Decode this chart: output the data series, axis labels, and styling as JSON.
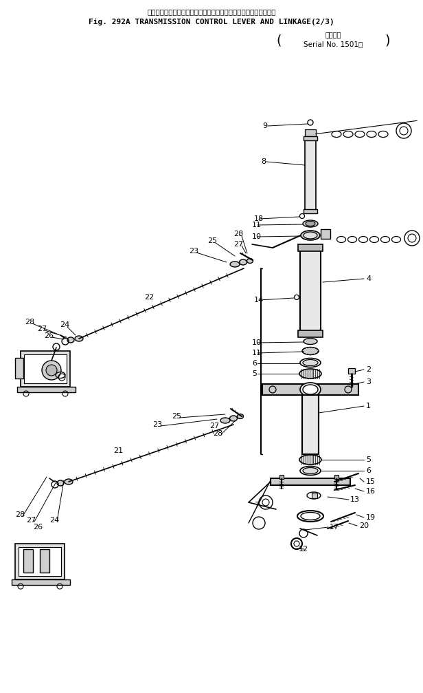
{
  "title_japanese": "トランスミッション　コントロール　レバー　および　リンケージ",
  "title_english": "Fig. 292A TRANSMISSION CONTROL LEVER AND LINKAGE(2/3)",
  "serial_label1": "適用号機",
  "serial_label2": "Serial No. 1501～",
  "bg_color": "#ffffff",
  "line_color": "#000000",
  "text_color": "#000000"
}
